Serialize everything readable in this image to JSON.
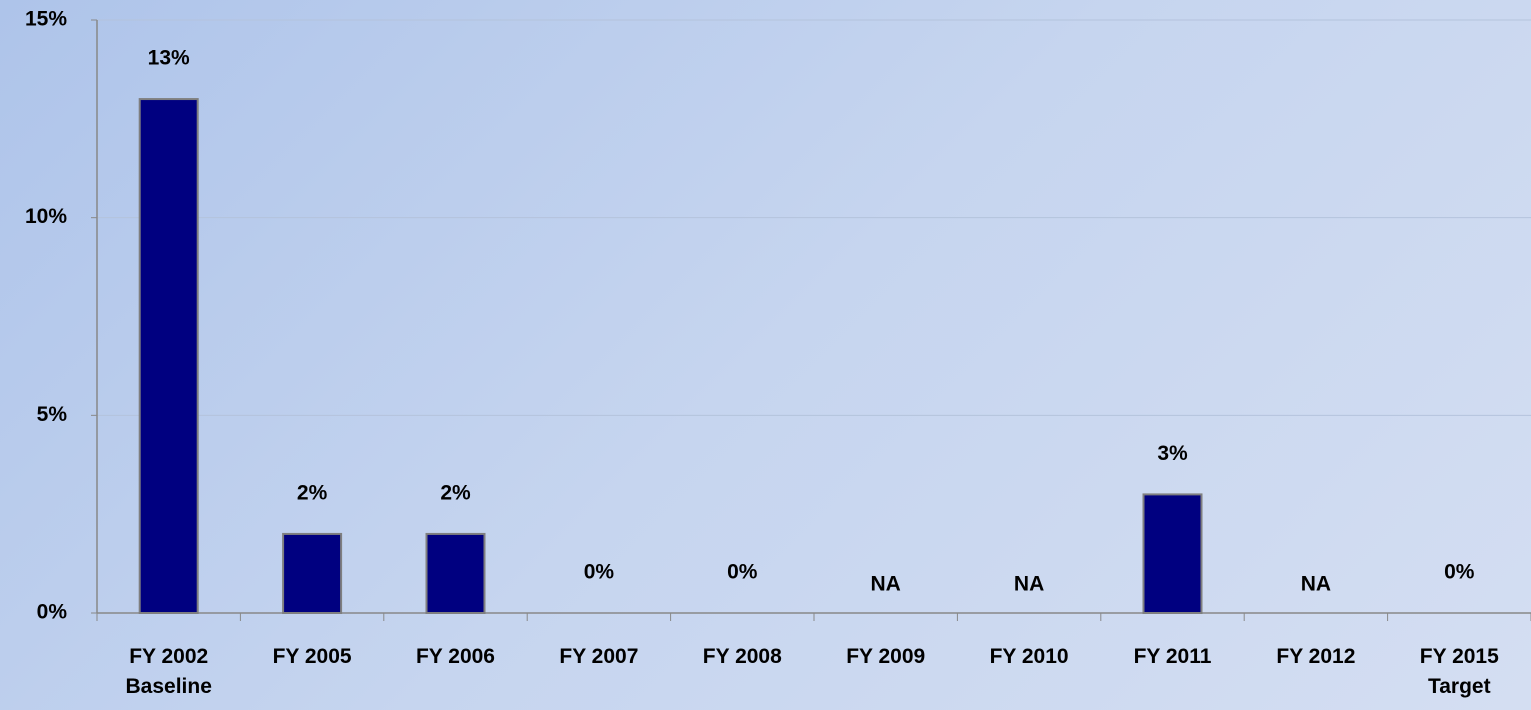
{
  "chart_data": {
    "type": "bar",
    "categories": [
      [
        "FY 2002",
        "Baseline"
      ],
      [
        "FY 2005"
      ],
      [
        "FY 2006"
      ],
      [
        "FY 2007"
      ],
      [
        "FY 2008"
      ],
      [
        "FY 2009"
      ],
      [
        "FY 2010"
      ],
      [
        "FY 2011"
      ],
      [
        "FY 2012"
      ],
      [
        "FY 2015",
        "Target"
      ]
    ],
    "values": [
      13,
      2,
      2,
      0,
      0,
      null,
      null,
      3,
      null,
      0
    ],
    "value_labels": [
      "13%",
      "2%",
      "2%",
      "0%",
      "0%",
      "NA",
      "NA",
      "3%",
      "NA",
      "0%"
    ],
    "color": "#000080",
    "ylim": [
      0,
      15
    ],
    "yticks": [
      {
        "value": 0,
        "label": "0%"
      },
      {
        "value": 5,
        "label": "5%"
      },
      {
        "value": 10,
        "label": "10%"
      },
      {
        "value": 15,
        "label": "15%"
      }
    ],
    "grid": true
  }
}
